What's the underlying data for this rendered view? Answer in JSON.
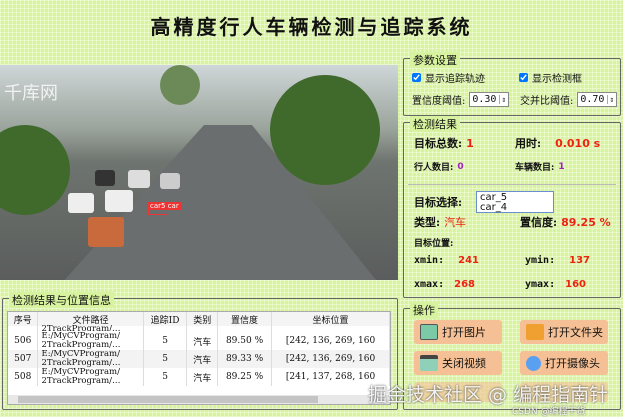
{
  "title": "高精度行人车辆检测与追踪系统",
  "video": {
    "watermark": "千库网",
    "detection_label": "car5 car"
  },
  "params": {
    "title": "参数设置",
    "show_track": "显示追踪轨迹",
    "show_box": "显示检测框",
    "conf_label": "置信度阈值:",
    "conf_value": "0.30",
    "iou_label": "交并比阈值:",
    "iou_value": "0.70"
  },
  "results": {
    "title": "检测结果",
    "total_label": "目标总数:",
    "total": "1",
    "time_label": "用时:",
    "time": "0.010 s",
    "person_label": "行人数目:",
    "person": "0",
    "vehicle_label": "车辆数目:",
    "vehicle": "1",
    "select_label": "目标选择:",
    "options": [
      "car_5",
      "car_4"
    ],
    "type_label": "类型:",
    "type": "汽车",
    "conf_label": "置信度:",
    "conf": "89.25 %",
    "pos_label": "目标位置:",
    "xmin_label": "xmin:",
    "xmin": "241",
    "ymin_label": "ymin:",
    "ymin": "137",
    "xmax_label": "xmax:",
    "xmax": "268",
    "ymax_label": "ymax:",
    "ymax": "160"
  },
  "table": {
    "title": "检测结果与位置信息",
    "headers": [
      "序号",
      "文件路径",
      "追踪ID",
      "类别",
      "置信度",
      "坐标位置"
    ],
    "rows": [
      {
        "idx": "506",
        "path1": "E:/MyCVProgram/",
        "path2": "2TrackProgram/…",
        "id": "5",
        "cls": "汽车",
        "conf": "89.50 %",
        "pos": "[242, 136, 269, 160"
      },
      {
        "idx": "507",
        "path1": "E:/MyCVProgram/",
        "path2": "2TrackProgram/…",
        "id": "5",
        "cls": "汽车",
        "conf": "89.33 %",
        "pos": "[242, 136, 269, 160"
      },
      {
        "idx": "508",
        "path1": "E:/MyCVProgram/",
        "path2": "2TrackProgram/…",
        "id": "5",
        "cls": "汽车",
        "conf": "89.25 %",
        "pos": "[241, 137, 268, 160"
      }
    ],
    "partial_row": "2TrackProgram/…"
  },
  "ops": {
    "title": "操作",
    "open_image": "打开图片",
    "open_folder": "打开文件夹",
    "close_video": "关闭视频",
    "open_camera": "打开摄像头"
  },
  "watermarks": {
    "juejin": "掘金技术社区 @ 编程指南针",
    "csdn": "CSDN @编程干货"
  }
}
